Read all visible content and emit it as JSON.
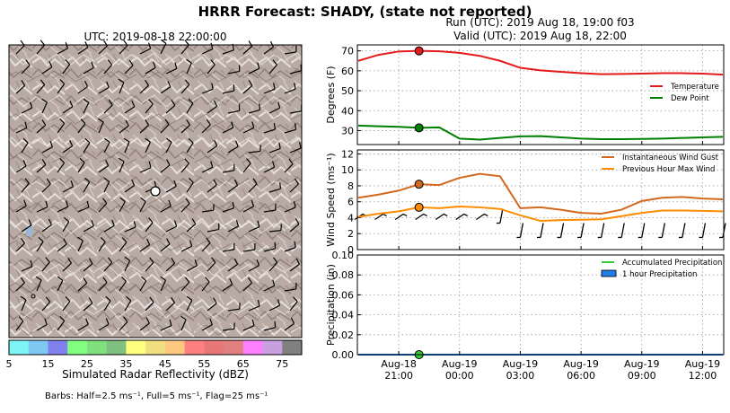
{
  "title": "HRRR Forecast: SHADY, (state not reported)",
  "map": {
    "time_label": "UTC: 2019-08-18 22:00:00",
    "colorbar_ticks": [
      "5",
      "15",
      "25",
      "35",
      "45",
      "55",
      "65",
      "75"
    ],
    "colorbar_colors": [
      "#7ff4f4",
      "#7fc8f4",
      "#8080ee",
      "#80ff80",
      "#80e080",
      "#80c080",
      "#ffff80",
      "#f0e080",
      "#ffc880",
      "#ff8080",
      "#e87878",
      "#e08080",
      "#ff80ff",
      "#c8a0e0",
      "#808080"
    ],
    "colorbar_label": "Simulated Radar Reflectivity (dBZ)",
    "barbs_note": "Barbs: Half=2.5 ms⁻¹, Full=5 ms⁻¹, Flag=25 ms⁻¹"
  },
  "header": {
    "run": "Run (UTC): 2019 Aug 18, 19:00 f03",
    "valid": "Valid (UTC): 2019 Aug 18, 22:00"
  },
  "chart_data": [
    {
      "type": "line",
      "ylabel": "Degrees (F)",
      "ylim": [
        23,
        73
      ],
      "yticks": [
        30,
        40,
        50,
        60,
        70
      ],
      "grid": true,
      "legend_position": "right",
      "x_hours_after_aug18_1900": [
        0,
        1,
        2,
        3,
        4,
        5,
        6,
        7,
        8,
        9,
        10,
        11,
        12,
        13,
        14,
        15,
        16,
        17,
        18
      ],
      "series": [
        {
          "name": "Temperature",
          "color": "#e41a1c",
          "values": [
            65,
            68,
            69.7,
            70,
            69.8,
            69,
            67.5,
            65,
            61.5,
            60.2,
            59.5,
            58.8,
            58.3,
            58.4,
            58.6,
            58.8,
            58.8,
            58.6,
            58.1
          ]
        },
        {
          "name": "Dew Point",
          "color": "#008000",
          "values": [
            32.5,
            32.2,
            31.9,
            31.4,
            31.6,
            26,
            25.5,
            26.3,
            27.1,
            27.2,
            26.6,
            26.0,
            25.7,
            25.7,
            25.8,
            26.0,
            26.3,
            26.6,
            26.9
          ]
        }
      ],
      "markers": [
        {
          "series": "Temperature",
          "x": 3,
          "y": 70
        },
        {
          "series": "Dew Point",
          "x": 3,
          "y": 31.4
        }
      ]
    },
    {
      "type": "line",
      "ylabel": "Wind Speed (ms⁻¹)",
      "ylim": [
        0,
        12.5
      ],
      "yticks": [
        0,
        2,
        4,
        6,
        8,
        10,
        12
      ],
      "grid": true,
      "legend_position": "top-right",
      "series": [
        {
          "name": "Instantaneous Wind Gust",
          "color": "#d2691e",
          "values": [
            6.5,
            6.9,
            7.4,
            8.2,
            8.1,
            9.0,
            9.5,
            9.2,
            5.2,
            5.3,
            5.0,
            4.6,
            4.5,
            5.0,
            6.1,
            6.5,
            6.6,
            6.4,
            6.3
          ]
        },
        {
          "name": "Previous Hour Max Wind",
          "color": "#ff8c00",
          "values": [
            4.1,
            4.5,
            4.8,
            5.3,
            5.2,
            5.4,
            5.3,
            5.1,
            4.3,
            3.6,
            3.7,
            3.75,
            3.8,
            4.2,
            4.6,
            4.9,
            4.9,
            4.85,
            4.8
          ]
        }
      ],
      "markers": [
        {
          "series": "Instantaneous Wind Gust",
          "x": 3,
          "y": 8.2
        },
        {
          "series": "Previous Hour Max Wind",
          "x": 3,
          "y": 5.3
        }
      ]
    },
    {
      "type": "line",
      "ylabel": "Precipitation (in)",
      "ylim": [
        0,
        0.1
      ],
      "yticks": [
        "0.00",
        "0.02",
        "0.04",
        "0.06",
        "0.08",
        "0.10"
      ],
      "grid": true,
      "legend_position": "top-right",
      "series": [
        {
          "name": "Accumulated Precipitation",
          "color": "#32cd32",
          "values": [
            0,
            0,
            0,
            0,
            0,
            0,
            0,
            0,
            0,
            0,
            0,
            0,
            0,
            0,
            0,
            0,
            0,
            0,
            0
          ]
        },
        {
          "name": "1 hour Precipitation",
          "color": "#1e7ee6",
          "values": [
            0,
            0,
            0,
            0,
            0,
            0,
            0,
            0,
            0,
            0,
            0,
            0,
            0,
            0,
            0,
            0,
            0,
            0,
            0
          ]
        }
      ],
      "markers": [
        {
          "series": "Accumulated Precipitation",
          "x": 3,
          "y": 0
        }
      ],
      "xtick_labels": [
        {
          "x": 2,
          "line1": "Aug-18",
          "line2": "21:00"
        },
        {
          "x": 5,
          "line1": "Aug-19",
          "line2": "00:00"
        },
        {
          "x": 8,
          "line1": "Aug-19",
          "line2": "03:00"
        },
        {
          "x": 11,
          "line1": "Aug-19",
          "line2": "06:00"
        },
        {
          "x": 14,
          "line1": "Aug-19",
          "line2": "09:00"
        },
        {
          "x": 17,
          "line1": "Aug-19",
          "line2": "12:00"
        }
      ]
    }
  ]
}
